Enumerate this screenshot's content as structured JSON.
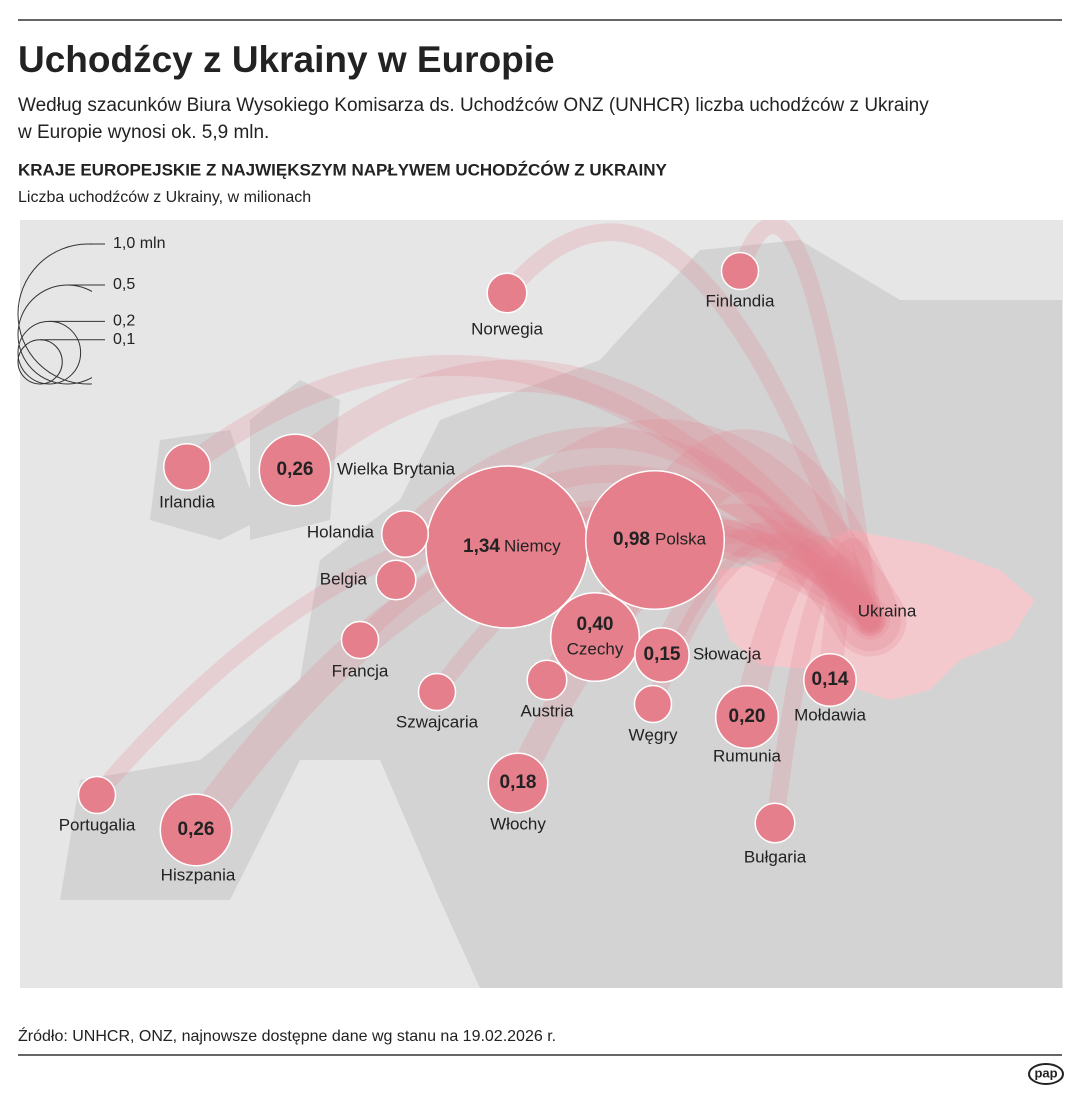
{
  "chart_data": {
    "type": "map",
    "title": "Uchodźcy z Ukrainy w Europie",
    "subtitle": [
      "Według szacunków Biura Wysokiego Komisarza ds. Uchodźców ONZ (UNHCR) liczba uchodźców z Ukrainy",
      "w Europie wynosi ok. 5,9 mln."
    ],
    "heading": "KRAJE EUROPEJSKIE Z NAJWIĘKSZYM NAPŁYWEM UCHODŹCÓW Z UKRAINY",
    "value_axis_label": "Liczba uchodźców z Ukrainy, w milionach",
    "origin_label": "Ukraina",
    "categories": [
      "Niemcy",
      "Polska",
      "Czechy",
      "Wielka Brytania",
      "Hiszpania",
      "Rumunia",
      "Włochy",
      "Słowacja",
      "Mołdawia",
      "Irlandia",
      "Norwegia",
      "Finlandia",
      "Holandia",
      "Belgia",
      "Francja",
      "Szwajcaria",
      "Austria",
      "Węgry",
      "Bułgaria",
      "Portugalia"
    ],
    "values": [
      1.34,
      0.98,
      0.4,
      0.26,
      0.26,
      0.2,
      0.18,
      0.15,
      0.14,
      0.11,
      0.08,
      0.07,
      0.11,
      0.08,
      0.07,
      0.07,
      0.08,
      0.07,
      0.08,
      0.07
    ],
    "value_labels": [
      "1,34",
      "0,98",
      "0,40",
      "0,26",
      "0,26",
      "0,20",
      "0,18",
      "0,15",
      "0,14",
      null,
      null,
      null,
      null,
      null,
      null,
      null,
      null,
      null,
      null,
      null
    ],
    "color": "#e57f8c",
    "size_legend": [
      {
        "value": 1.0,
        "label": "1,0 mln"
      },
      {
        "value": 0.5,
        "label": "0,5"
      },
      {
        "value": 0.2,
        "label": "0,2"
      },
      {
        "value": 0.1,
        "label": "0,1"
      }
    ],
    "source": "Źródło: UNHCR, ONZ, najnowsze dostępne dane wg stanu na 19.02.2026 r.",
    "logo": "pap"
  }
}
